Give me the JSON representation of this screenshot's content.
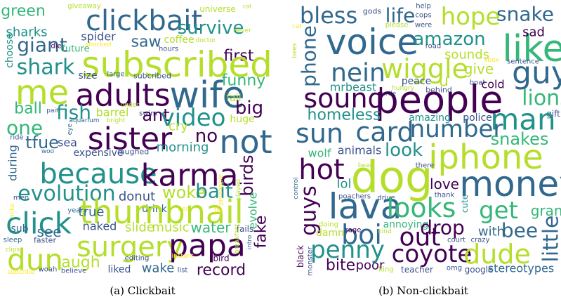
{
  "panels": [
    {
      "caption": "(a) Clickbait",
      "words": [
        "green",
        "giveaway",
        "clickbait",
        "survive",
        "universe",
        "cat",
        "never",
        "sharks",
        "giant",
        "spider",
        "saw",
        "coffee",
        "doctor",
        "first",
        "choose",
        "future",
        "shocked",
        "hours",
        "shark",
        "subscribed",
        "die",
        "me",
        "size",
        "large",
        "subcribed",
        "adults",
        "wife",
        "funny",
        "fail",
        "ball",
        "pain",
        "fish",
        "barrel",
        "under",
        "swim",
        "ant",
        "video",
        "big",
        "aquarium",
        "bright",
        "one",
        "eye",
        "sister",
        "huge",
        "cry",
        "no",
        "not",
        "ride",
        "tfue",
        "sea",
        "woo",
        "expensive",
        "laughed",
        "morning",
        "during",
        "because",
        "karma",
        "birds",
        "pineapple",
        "played",
        "evolution",
        "donut",
        "woke",
        "bait",
        "men",
        "drink",
        "bed",
        "evolve",
        "click",
        "years",
        "thumbnail",
        "mike",
        "true",
        "fly",
        "sub",
        "see",
        "naked",
        "slide",
        "music",
        "water",
        "fails",
        "fake",
        "sleep",
        "clips",
        "faster",
        "dun",
        "laugh",
        "surgery",
        "papa",
        "breakfast",
        "intro",
        "editing",
        "instant",
        "bird",
        "liked",
        "wake",
        "list",
        "record",
        "woah",
        "believe",
        "subcribe"
      ]
    },
    {
      "caption": "(b) Non-clickbait",
      "words": [
        "bless",
        "gods",
        "life",
        "help",
        "cops",
        "hope",
        "snake",
        "voice",
        "amazon",
        "cat",
        "were",
        "please",
        "like",
        "sad",
        "phone",
        "bees",
        "nein",
        "wiggle",
        "sounds",
        "road",
        "xbox",
        "sentence",
        "give",
        "guy",
        "mrbeast",
        "peace",
        "u",
        "boat",
        "cold",
        "hungry",
        "behind",
        "turtle",
        "sound",
        "people",
        "lions",
        "homeless",
        "amazing",
        "police",
        "gift",
        "man",
        "sun",
        "card",
        "number",
        "snakes",
        "wolf",
        "animals",
        "look",
        "iphone",
        "hot",
        "dog",
        "money",
        "bear",
        "there",
        "lol",
        "control",
        "guys",
        "love",
        "thank",
        "poachers",
        "drive",
        "lava",
        "looks",
        "cute",
        "get",
        "grand",
        "annoying",
        "drop",
        "with",
        "bee",
        "little",
        "damn",
        "boi",
        "rage",
        "kind",
        "out",
        "court",
        "crazy",
        "doing",
        "penny",
        "coyote",
        "dude",
        "black",
        "monster",
        "bite",
        "poor",
        "king",
        "teacher",
        "omg",
        "google",
        "stereotypes"
      ]
    }
  ]
}
